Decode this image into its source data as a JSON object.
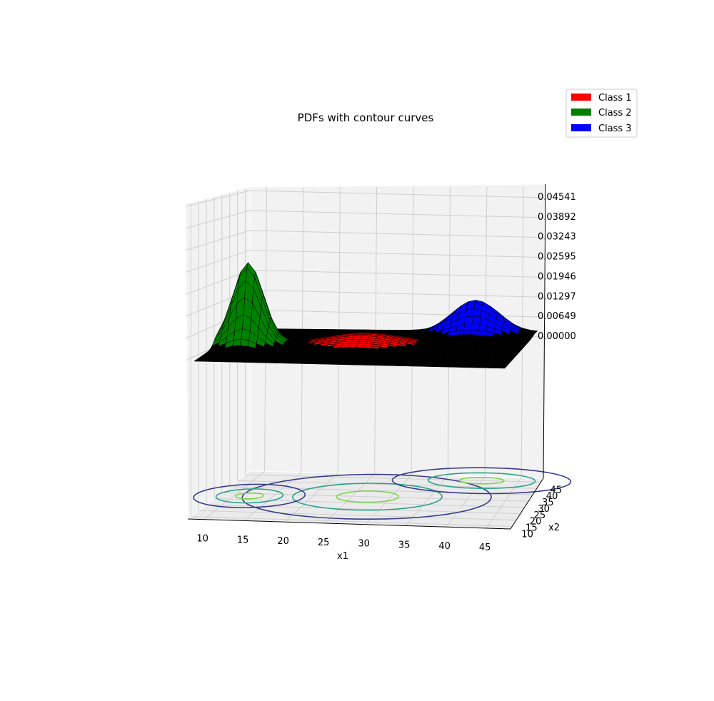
{
  "chart_data": {
    "type": "surface3d",
    "title": "PDFs with contour curves",
    "xlabel": "x1",
    "ylabel": "x2",
    "zlabel": "",
    "x_ticks": [
      "10",
      "15",
      "20",
      "25",
      "30",
      "35",
      "40",
      "45"
    ],
    "y_ticks": [
      "10",
      "15",
      "20",
      "25",
      "30",
      "35",
      "40",
      "45"
    ],
    "z_ticks": [
      "0.00000",
      "0.00649",
      "0.01297",
      "0.01946",
      "0.02595",
      "0.03243",
      "0.03892",
      "0.04541"
    ],
    "xlim": [
      8,
      48
    ],
    "ylim": [
      8,
      48
    ],
    "zlim": [
      0,
      0.04541
    ],
    "grid": true,
    "legend_position": "top-right",
    "series": [
      {
        "name": "Class 1",
        "color": "#ff0000",
        "mean": [
          27,
          30
        ],
        "peak": 0.004
      },
      {
        "name": "Class 2",
        "color": "#008000",
        "mean": [
          12,
          28
        ],
        "peak": 0.027
      },
      {
        "name": "Class 3",
        "color": "#0000ff",
        "mean": [
          40,
          45
        ],
        "peak": 0.011
      }
    ],
    "contour_colors": [
      "#3b3b8f",
      "#2aa28a",
      "#7fd34e"
    ]
  }
}
